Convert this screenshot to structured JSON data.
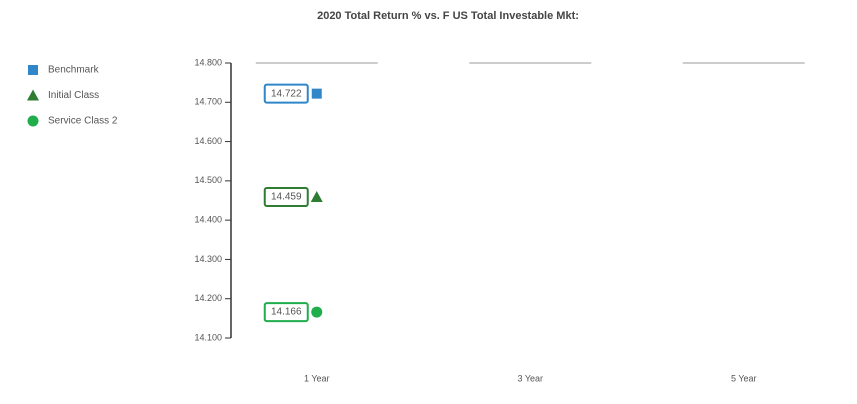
{
  "chart_data": {
    "type": "scatter",
    "title": "2020 Total Return % vs. F US Total Investable Mkt:",
    "categories": [
      "1 Year",
      "3 Year",
      "5 Year"
    ],
    "series": [
      {
        "name": "Benchmark",
        "color": "#2f86c9",
        "marker": "square",
        "values": [
          14.722,
          null,
          null
        ]
      },
      {
        "name": "Initial Class",
        "color": "#2e7d32",
        "marker": "triangle",
        "values": [
          14.459,
          null,
          null
        ]
      },
      {
        "name": "Service Class 2",
        "color": "#1fae4b",
        "marker": "circle",
        "values": [
          14.166,
          null,
          null
        ]
      }
    ],
    "ylim": [
      14.1,
      14.8
    ],
    "yticks": [
      {
        "value": 14.1,
        "label": "14.100"
      },
      {
        "value": 14.2,
        "label": "14.200"
      },
      {
        "value": 14.3,
        "label": "14.300"
      },
      {
        "value": 14.4,
        "label": "14.400"
      },
      {
        "value": 14.5,
        "label": "14.500"
      },
      {
        "value": 14.6,
        "label": "14.600"
      },
      {
        "value": 14.7,
        "label": "14.700"
      },
      {
        "value": 14.8,
        "label": "14.800"
      }
    ],
    "legend": "left"
  }
}
